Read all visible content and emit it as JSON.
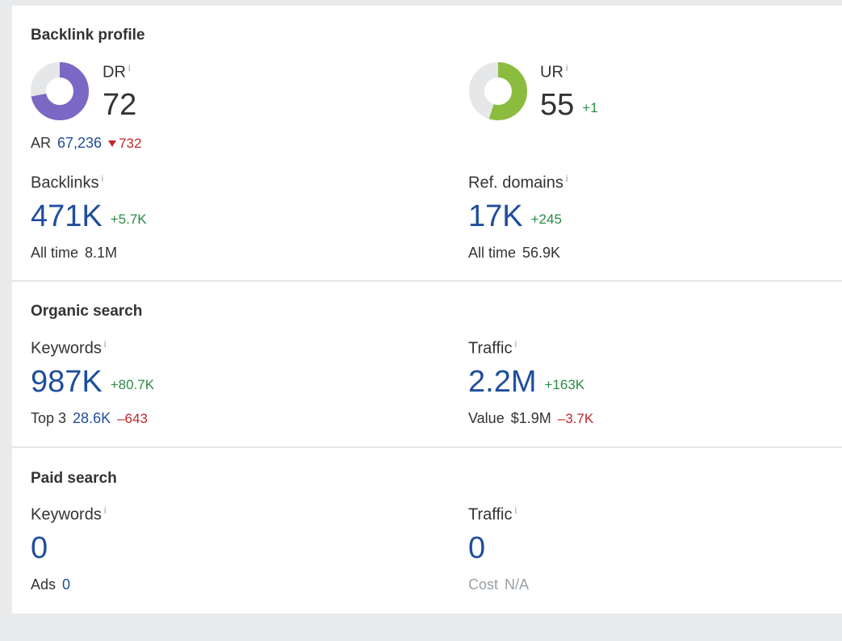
{
  "backlink_profile": {
    "title": "Backlink profile",
    "dr": {
      "label": "DR",
      "info": "i",
      "value": "72",
      "donut_fraction": 0.72,
      "color": "#7b68c4"
    },
    "ur": {
      "label": "UR",
      "info": "i",
      "value": "55",
      "delta": "+1",
      "donut_fraction": 0.55,
      "color": "#8cbc3f"
    },
    "ar": {
      "label": "AR",
      "value": "67,236",
      "delta": "732"
    },
    "backlinks": {
      "label": "Backlinks",
      "info": "i",
      "value": "471K",
      "delta": "+5.7K",
      "sub_label": "All time",
      "sub_value": "8.1M"
    },
    "ref_domains": {
      "label": "Ref. domains",
      "info": "i",
      "value": "17K",
      "delta": "+245",
      "sub_label": "All time",
      "sub_value": "56.9K"
    }
  },
  "organic_search": {
    "title": "Organic search",
    "keywords": {
      "label": "Keywords",
      "info": "i",
      "value": "987K",
      "delta": "+80.7K",
      "sub_label": "Top 3",
      "sub_value": "28.6K",
      "sub_delta": "–643"
    },
    "traffic": {
      "label": "Traffic",
      "info": "i",
      "value": "2.2M",
      "delta": "+163K",
      "sub_label": "Value",
      "sub_value": "$1.9M",
      "sub_delta": "–3.7K"
    }
  },
  "paid_search": {
    "title": "Paid search",
    "keywords": {
      "label": "Keywords",
      "info": "i",
      "value": "0",
      "sub_label": "Ads",
      "sub_value": "0"
    },
    "traffic": {
      "label": "Traffic",
      "info": "i",
      "value": "0",
      "sub_label": "Cost",
      "sub_value": "N/A"
    }
  },
  "colors": {
    "track": "#e6e7e9",
    "link_blue": "#1f4e9c",
    "positive": "#2a8a47",
    "negative": "#c0272d"
  }
}
